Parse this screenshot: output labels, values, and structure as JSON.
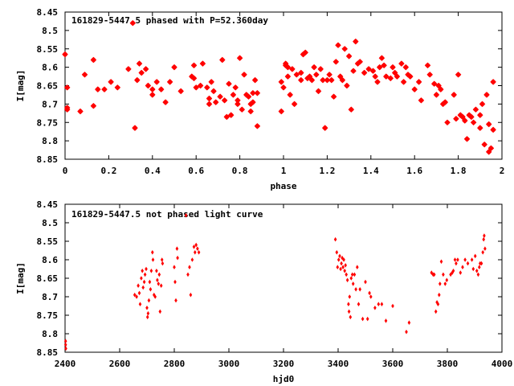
{
  "chart_data": [
    {
      "type": "scatter",
      "title": "161829-5447.5 phased with P=52.360day",
      "xlabel": "phase",
      "ylabel": "I[mag]",
      "xlim": [
        0,
        2
      ],
      "ylim": [
        8.45,
        8.85
      ],
      "y_inverted": true,
      "xticks": [
        "0",
        "0.2",
        "0.4",
        "0.6",
        "0.8",
        "1",
        "1.2",
        "1.4",
        "1.6",
        "1.8",
        "2"
      ],
      "yticks": [
        "8.45",
        "8.5",
        "8.55",
        "8.6",
        "8.65",
        "8.7",
        "8.75",
        "8.8",
        "8.85"
      ],
      "marker": "star",
      "color": "#ff0000",
      "points": [
        [
          0.0,
          8.565
        ],
        [
          0.01,
          8.655
        ],
        [
          0.01,
          8.71
        ],
        [
          0.01,
          8.715
        ],
        [
          0.07,
          8.72
        ],
        [
          0.09,
          8.62
        ],
        [
          0.13,
          8.705
        ],
        [
          0.13,
          8.58
        ],
        [
          0.15,
          8.66
        ],
        [
          0.18,
          8.66
        ],
        [
          0.21,
          8.64
        ],
        [
          0.24,
          8.655
        ],
        [
          0.29,
          8.605
        ],
        [
          0.31,
          8.48
        ],
        [
          0.32,
          8.765
        ],
        [
          0.33,
          8.635
        ],
        [
          0.34,
          8.59
        ],
        [
          0.35,
          8.615
        ],
        [
          0.37,
          8.605
        ],
        [
          0.38,
          8.65
        ],
        [
          0.4,
          8.66
        ],
        [
          0.4,
          8.675
        ],
        [
          0.42,
          8.64
        ],
        [
          0.44,
          8.66
        ],
        [
          0.46,
          8.695
        ],
        [
          0.48,
          8.64
        ],
        [
          0.5,
          8.6
        ],
        [
          0.53,
          8.665
        ],
        [
          0.58,
          8.625
        ],
        [
          0.59,
          8.595
        ],
        [
          0.59,
          8.63
        ],
        [
          0.6,
          8.655
        ],
        [
          0.62,
          8.65
        ],
        [
          0.63,
          8.59
        ],
        [
          0.65,
          8.655
        ],
        [
          0.66,
          8.685
        ],
        [
          0.66,
          8.7
        ],
        [
          0.67,
          8.64
        ],
        [
          0.68,
          8.665
        ],
        [
          0.69,
          8.695
        ],
        [
          0.71,
          8.68
        ],
        [
          0.72,
          8.58
        ],
        [
          0.73,
          8.69
        ],
        [
          0.74,
          8.735
        ],
        [
          0.75,
          8.645
        ],
        [
          0.76,
          8.73
        ],
        [
          0.77,
          8.675
        ],
        [
          0.78,
          8.655
        ],
        [
          0.79,
          8.69
        ],
        [
          0.79,
          8.7
        ],
        [
          0.8,
          8.575
        ],
        [
          0.81,
          8.715
        ],
        [
          0.82,
          8.62
        ],
        [
          0.83,
          8.675
        ],
        [
          0.84,
          8.68
        ],
        [
          0.85,
          8.7
        ],
        [
          0.85,
          8.72
        ],
        [
          0.86,
          8.67
        ],
        [
          0.86,
          8.695
        ],
        [
          0.87,
          8.635
        ],
        [
          0.88,
          8.76
        ],
        [
          0.88,
          8.67
        ],
        [
          0.99,
          8.72
        ],
        [
          0.99,
          8.64
        ],
        [
          1.0,
          8.655
        ],
        [
          1.01,
          8.595
        ],
        [
          1.01,
          8.59
        ],
        [
          1.02,
          8.6
        ],
        [
          1.02,
          8.625
        ],
        [
          1.03,
          8.675
        ],
        [
          1.04,
          8.605
        ],
        [
          1.05,
          8.7
        ],
        [
          1.06,
          8.62
        ],
        [
          1.08,
          8.635
        ],
        [
          1.08,
          8.615
        ],
        [
          1.09,
          8.565
        ],
        [
          1.1,
          8.56
        ],
        [
          1.11,
          8.63
        ],
        [
          1.12,
          8.625
        ],
        [
          1.13,
          8.635
        ],
        [
          1.14,
          8.6
        ],
        [
          1.15,
          8.62
        ],
        [
          1.16,
          8.665
        ],
        [
          1.17,
          8.605
        ],
        [
          1.18,
          8.635
        ],
        [
          1.19,
          8.765
        ],
        [
          1.2,
          8.635
        ],
        [
          1.21,
          8.62
        ],
        [
          1.22,
          8.635
        ],
        [
          1.23,
          8.68
        ],
        [
          1.24,
          8.585
        ],
        [
          1.25,
          8.54
        ],
        [
          1.26,
          8.625
        ],
        [
          1.27,
          8.635
        ],
        [
          1.28,
          8.55
        ],
        [
          1.29,
          8.65
        ],
        [
          1.3,
          8.57
        ],
        [
          1.31,
          8.715
        ],
        [
          1.32,
          8.61
        ],
        [
          1.33,
          8.53
        ],
        [
          1.34,
          8.59
        ],
        [
          1.35,
          8.585
        ],
        [
          1.37,
          8.615
        ],
        [
          1.39,
          8.605
        ],
        [
          1.41,
          8.61
        ],
        [
          1.42,
          8.625
        ],
        [
          1.43,
          8.64
        ],
        [
          1.44,
          8.6
        ],
        [
          1.45,
          8.575
        ],
        [
          1.46,
          8.595
        ],
        [
          1.47,
          8.625
        ],
        [
          1.49,
          8.63
        ],
        [
          1.5,
          8.6
        ],
        [
          1.51,
          8.615
        ],
        [
          1.52,
          8.625
        ],
        [
          1.54,
          8.59
        ],
        [
          1.55,
          8.64
        ],
        [
          1.56,
          8.6
        ],
        [
          1.57,
          8.62
        ],
        [
          1.58,
          8.625
        ],
        [
          1.6,
          8.66
        ],
        [
          1.62,
          8.64
        ],
        [
          1.63,
          8.69
        ],
        [
          1.66,
          8.595
        ],
        [
          1.67,
          8.62
        ],
        [
          1.69,
          8.645
        ],
        [
          1.7,
          8.675
        ],
        [
          1.71,
          8.65
        ],
        [
          1.72,
          8.66
        ],
        [
          1.73,
          8.7
        ],
        [
          1.74,
          8.695
        ],
        [
          1.75,
          8.75
        ],
        [
          1.78,
          8.675
        ],
        [
          1.79,
          8.74
        ],
        [
          1.8,
          8.62
        ],
        [
          1.81,
          8.73
        ],
        [
          1.82,
          8.735
        ],
        [
          1.83,
          8.745
        ],
        [
          1.84,
          8.795
        ],
        [
          1.85,
          8.73
        ],
        [
          1.86,
          8.735
        ],
        [
          1.87,
          8.75
        ],
        [
          1.88,
          8.715
        ],
        [
          1.9,
          8.73
        ],
        [
          1.9,
          8.765
        ],
        [
          1.91,
          8.7
        ],
        [
          1.92,
          8.81
        ],
        [
          1.93,
          8.675
        ],
        [
          1.94,
          8.755
        ],
        [
          1.94,
          8.83
        ],
        [
          1.95,
          8.82
        ],
        [
          1.96,
          8.64
        ],
        [
          1.96,
          8.77
        ]
      ]
    },
    {
      "type": "scatter",
      "title": "161829-5447.5 not phased light curve",
      "xlabel": "hjd0",
      "ylabel": "I[mag]",
      "xlim": [
        2400,
        4000
      ],
      "ylim": [
        8.45,
        8.85
      ],
      "y_inverted": true,
      "xticks": [
        "2400",
        "2600",
        "2800",
        "3000",
        "3200",
        "3400",
        "3600",
        "3800",
        "4000"
      ],
      "yticks": [
        "8.45",
        "8.5",
        "8.55",
        "8.6",
        "8.65",
        "8.7",
        "8.75",
        "8.8",
        "8.85"
      ],
      "marker": "diamond",
      "color": "#ff0000",
      "points": [
        [
          2402,
          8.82
        ],
        [
          2402,
          8.83
        ],
        [
          2403,
          8.84
        ],
        [
          2655,
          8.695
        ],
        [
          2662,
          8.7
        ],
        [
          2668,
          8.67
        ],
        [
          2672,
          8.69
        ],
        [
          2675,
          8.72
        ],
        [
          2679,
          8.65
        ],
        [
          2683,
          8.63
        ],
        [
          2686,
          8.675
        ],
        [
          2690,
          8.66
        ],
        [
          2693,
          8.64
        ],
        [
          2697,
          8.625
        ],
        [
          2700,
          8.73
        ],
        [
          2702,
          8.755
        ],
        [
          2704,
          8.745
        ],
        [
          2707,
          8.71
        ],
        [
          2710,
          8.66
        ],
        [
          2713,
          8.68
        ],
        [
          2716,
          8.63
        ],
        [
          2720,
          8.58
        ],
        [
          2722,
          8.6
        ],
        [
          2726,
          8.695
        ],
        [
          2730,
          8.7
        ],
        [
          2735,
          8.63
        ],
        [
          2738,
          8.655
        ],
        [
          2742,
          8.665
        ],
        [
          2745,
          8.64
        ],
        [
          2748,
          8.74
        ],
        [
          2752,
          8.67
        ],
        [
          2755,
          8.6
        ],
        [
          2757,
          8.61
        ],
        [
          2800,
          8.62
        ],
        [
          2803,
          8.66
        ],
        [
          2806,
          8.71
        ],
        [
          2810,
          8.57
        ],
        [
          2812,
          8.595
        ],
        [
          2843,
          8.48
        ],
        [
          2850,
          8.64
        ],
        [
          2856,
          8.62
        ],
        [
          2860,
          8.695
        ],
        [
          2866,
          8.6
        ],
        [
          2872,
          8.565
        ],
        [
          2876,
          8.58
        ],
        [
          2880,
          8.56
        ],
        [
          2885,
          8.57
        ],
        [
          2890,
          8.58
        ],
        [
          3390,
          8.545
        ],
        [
          3395,
          8.58
        ],
        [
          3398,
          8.62
        ],
        [
          3402,
          8.6
        ],
        [
          3406,
          8.59
        ],
        [
          3409,
          8.625
        ],
        [
          3412,
          8.61
        ],
        [
          3415,
          8.595
        ],
        [
          3418,
          8.62
        ],
        [
          3421,
          8.6
        ],
        [
          3424,
          8.63
        ],
        [
          3427,
          8.615
        ],
        [
          3430,
          8.64
        ],
        [
          3434,
          8.655
        ],
        [
          3438,
          8.72
        ],
        [
          3440,
          8.74
        ],
        [
          3442,
          8.7
        ],
        [
          3445,
          8.755
        ],
        [
          3448,
          8.65
        ],
        [
          3452,
          8.64
        ],
        [
          3455,
          8.665
        ],
        [
          3460,
          8.64
        ],
        [
          3465,
          8.68
        ],
        [
          3470,
          8.62
        ],
        [
          3475,
          8.72
        ],
        [
          3480,
          8.68
        ],
        [
          3490,
          8.76
        ],
        [
          3500,
          8.66
        ],
        [
          3508,
          8.76
        ],
        [
          3515,
          8.69
        ],
        [
          3520,
          8.7
        ],
        [
          3535,
          8.73
        ],
        [
          3548,
          8.72
        ],
        [
          3560,
          8.72
        ],
        [
          3575,
          8.765
        ],
        [
          3600,
          8.725
        ],
        [
          3650,
          8.795
        ],
        [
          3660,
          8.77
        ],
        [
          3742,
          8.635
        ],
        [
          3748,
          8.64
        ],
        [
          3752,
          8.64
        ],
        [
          3758,
          8.74
        ],
        [
          3762,
          8.715
        ],
        [
          3766,
          8.72
        ],
        [
          3770,
          8.695
        ],
        [
          3773,
          8.665
        ],
        [
          3778,
          8.605
        ],
        [
          3785,
          8.64
        ],
        [
          3792,
          8.665
        ],
        [
          3798,
          8.655
        ],
        [
          3812,
          8.64
        ],
        [
          3818,
          8.635
        ],
        [
          3822,
          8.63
        ],
        [
          3828,
          8.6
        ],
        [
          3832,
          8.61
        ],
        [
          3838,
          8.6
        ],
        [
          3848,
          8.635
        ],
        [
          3856,
          8.62
        ],
        [
          3865,
          8.6
        ],
        [
          3875,
          8.61
        ],
        [
          3890,
          8.6
        ],
        [
          3895,
          8.625
        ],
        [
          3902,
          8.59
        ],
        [
          3908,
          8.63
        ],
        [
          3913,
          8.64
        ],
        [
          3917,
          8.62
        ],
        [
          3920,
          8.61
        ],
        [
          3925,
          8.61
        ],
        [
          3930,
          8.58
        ],
        [
          3933,
          8.545
        ],
        [
          3935,
          8.535
        ],
        [
          3938,
          8.57
        ]
      ]
    }
  ]
}
